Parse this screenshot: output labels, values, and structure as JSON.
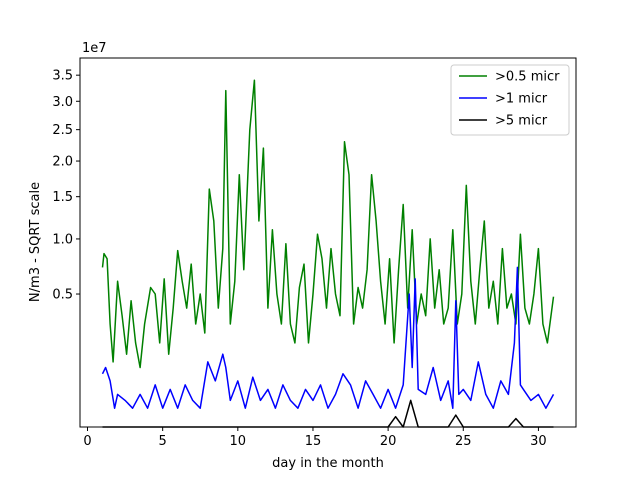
{
  "chart_data": {
    "type": "line",
    "title": "",
    "xlabel": "day in the month",
    "ylabel": "N/m3 - SQRT scale",
    "y_scale": "sqrt",
    "y_offset_label": "1e7",
    "xlim": [
      -0.5,
      32.5
    ],
    "ylim": [
      0.0,
      3.85
    ],
    "x_ticks": [
      0,
      5,
      10,
      15,
      20,
      25,
      30
    ],
    "x_tick_labels": [
      "0",
      "5",
      "10",
      "15",
      "20",
      "25",
      "30"
    ],
    "y_ticks": [
      0.5,
      1.0,
      1.5,
      2.0,
      2.5,
      3.0,
      3.5
    ],
    "y_tick_labels": [
      "0.5",
      "1.0",
      "1.5",
      "2.0",
      "2.5",
      "3.0",
      "3.5"
    ],
    "grid": false,
    "legend_position": "upper-right",
    "series": [
      {
        "name": ">0.5 micr",
        "color": "#008000",
        "x": [
          1.0,
          1.1,
          1.3,
          1.5,
          1.7,
          2.0,
          2.3,
          2.6,
          2.9,
          3.2,
          3.5,
          3.8,
          4.2,
          4.5,
          4.8,
          5.1,
          5.4,
          5.7,
          6.0,
          6.3,
          6.6,
          6.9,
          7.2,
          7.5,
          7.8,
          8.1,
          8.4,
          8.7,
          9.0,
          9.2,
          9.5,
          9.8,
          10.1,
          10.4,
          10.8,
          11.1,
          11.4,
          11.7,
          12.0,
          12.3,
          12.6,
          12.9,
          13.2,
          13.5,
          13.8,
          14.1,
          14.4,
          14.7,
          15.0,
          15.3,
          15.6,
          15.9,
          16.2,
          16.5,
          16.8,
          17.1,
          17.4,
          17.7,
          18.0,
          18.3,
          18.6,
          18.9,
          19.2,
          19.5,
          19.8,
          20.1,
          20.4,
          20.7,
          21.0,
          21.3,
          21.6,
          21.9,
          22.2,
          22.5,
          22.8,
          23.1,
          23.4,
          23.7,
          24.0,
          24.3,
          24.6,
          24.9,
          25.2,
          25.5,
          25.8,
          26.1,
          26.4,
          26.7,
          27.0,
          27.3,
          27.6,
          27.9,
          28.2,
          28.5,
          28.8,
          29.1,
          29.4,
          29.7,
          30.0,
          30.3,
          30.6,
          31.0
        ],
        "values": [
          0.72,
          0.85,
          0.8,
          0.3,
          0.12,
          0.6,
          0.35,
          0.15,
          0.45,
          0.2,
          0.1,
          0.3,
          0.55,
          0.5,
          0.2,
          0.62,
          0.15,
          0.4,
          0.88,
          0.6,
          0.4,
          0.75,
          0.3,
          0.5,
          0.25,
          1.6,
          1.2,
          0.4,
          0.9,
          3.2,
          0.3,
          0.6,
          1.8,
          0.7,
          2.5,
          3.4,
          1.2,
          2.2,
          0.4,
          1.1,
          0.5,
          0.3,
          0.95,
          0.3,
          0.2,
          0.55,
          0.75,
          0.2,
          0.5,
          1.05,
          0.8,
          0.4,
          0.9,
          0.5,
          0.35,
          2.3,
          1.8,
          0.3,
          0.55,
          0.4,
          0.7,
          1.8,
          1.2,
          0.6,
          0.3,
          0.8,
          0.2,
          0.7,
          1.4,
          0.4,
          1.1,
          0.3,
          0.5,
          0.35,
          1.0,
          0.4,
          0.7,
          0.3,
          0.4,
          1.1,
          0.3,
          0.5,
          1.65,
          0.6,
          0.3,
          0.7,
          1.2,
          0.4,
          0.6,
          0.3,
          0.9,
          0.4,
          0.5,
          0.3,
          1.05,
          0.4,
          0.3,
          0.5,
          0.9,
          0.3,
          0.2,
          0.48
        ]
      },
      {
        "name": ">1 micr",
        "color": "#0000ff",
        "x": [
          1.0,
          1.2,
          1.5,
          1.8,
          2.0,
          2.5,
          3.0,
          3.5,
          4.0,
          4.5,
          5.0,
          5.5,
          6.0,
          6.5,
          7.0,
          7.5,
          8.0,
          8.5,
          9.0,
          9.2,
          9.5,
          10.0,
          10.5,
          11.0,
          11.5,
          12.0,
          12.5,
          13.0,
          13.5,
          14.0,
          14.5,
          15.0,
          15.5,
          16.0,
          16.5,
          17.0,
          17.5,
          18.0,
          18.5,
          19.0,
          19.5,
          20.0,
          20.5,
          21.0,
          21.4,
          21.6,
          21.8,
          22.0,
          22.5,
          23.0,
          23.5,
          24.0,
          24.3,
          24.5,
          24.7,
          25.0,
          25.5,
          26.0,
          26.5,
          27.0,
          27.5,
          28.0,
          28.4,
          28.6,
          28.8,
          29.0,
          29.5,
          30.0,
          30.5,
          31.0
        ],
        "values": [
          0.08,
          0.1,
          0.06,
          0.01,
          0.03,
          0.02,
          0.01,
          0.03,
          0.01,
          0.05,
          0.01,
          0.04,
          0.01,
          0.05,
          0.02,
          0.01,
          0.12,
          0.06,
          0.15,
          0.1,
          0.02,
          0.06,
          0.01,
          0.07,
          0.02,
          0.04,
          0.01,
          0.05,
          0.02,
          0.01,
          0.04,
          0.02,
          0.05,
          0.01,
          0.03,
          0.08,
          0.05,
          0.01,
          0.06,
          0.03,
          0.01,
          0.04,
          0.01,
          0.05,
          0.5,
          0.1,
          0.62,
          0.04,
          0.03,
          0.1,
          0.02,
          0.06,
          0.01,
          0.45,
          0.03,
          0.04,
          0.02,
          0.12,
          0.03,
          0.01,
          0.06,
          0.03,
          0.2,
          0.72,
          0.05,
          0.04,
          0.02,
          0.03,
          0.01,
          0.03
        ]
      },
      {
        "name": ">5 micr",
        "color": "#000000",
        "x": [
          1.0,
          5.0,
          10.0,
          15.0,
          19.0,
          20.0,
          20.5,
          21.0,
          21.5,
          22.0,
          22.5,
          23.0,
          24.0,
          24.5,
          25.0,
          26.0,
          27.0,
          28.0,
          28.5,
          29.0,
          30.0,
          31.0
        ],
        "values": [
          0.0,
          0.0,
          0.0,
          0.0,
          0.0,
          0.0,
          0.003,
          0.0,
          0.02,
          0.0,
          0.0,
          0.0,
          0.0,
          0.004,
          0.0,
          0.0,
          0.0,
          0.0,
          0.002,
          0.0,
          0.0,
          0.0
        ]
      }
    ]
  }
}
